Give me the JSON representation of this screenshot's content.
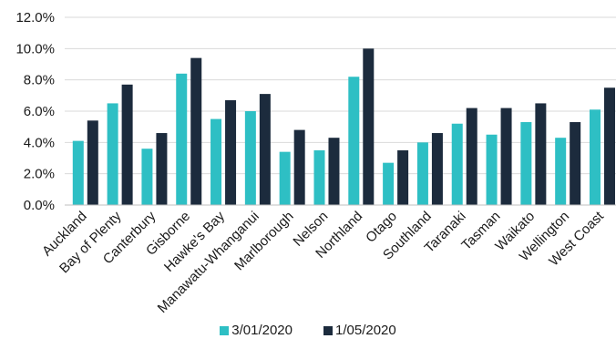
{
  "chart_data": {
    "type": "bar",
    "categories": [
      "Auckland",
      "Bay of Plenty",
      "Canterbury",
      "Gisborne",
      "Hawke's Bay",
      "Manawatu-Whanganui",
      "Marlborough",
      "Nelson",
      "Northland",
      "Otago",
      "Southland",
      "Taranaki",
      "Tasman",
      "Waikato",
      "Wellington",
      "West Coast"
    ],
    "series": [
      {
        "name": "3/01/2020",
        "color": "#2ebfc4",
        "values": [
          4.1,
          6.5,
          3.6,
          8.4,
          5.5,
          6.0,
          3.4,
          3.5,
          8.2,
          2.7,
          4.0,
          5.2,
          4.5,
          5.3,
          4.3,
          6.1
        ]
      },
      {
        "name": "1/05/2020",
        "color": "#1c2b3d",
        "values": [
          5.4,
          7.7,
          4.6,
          9.4,
          6.7,
          7.1,
          4.8,
          4.3,
          10.0,
          3.5,
          4.6,
          6.2,
          6.2,
          6.5,
          5.3,
          7.5
        ]
      }
    ],
    "y_ticks": [
      "0.0%",
      "2.0%",
      "4.0%",
      "6.0%",
      "8.0%",
      "10.0%",
      "12.0%"
    ],
    "ylim": [
      0,
      12
    ],
    "title": "",
    "xlabel": "",
    "ylabel": "",
    "gridlines": true,
    "legend_position": "bottom"
  }
}
